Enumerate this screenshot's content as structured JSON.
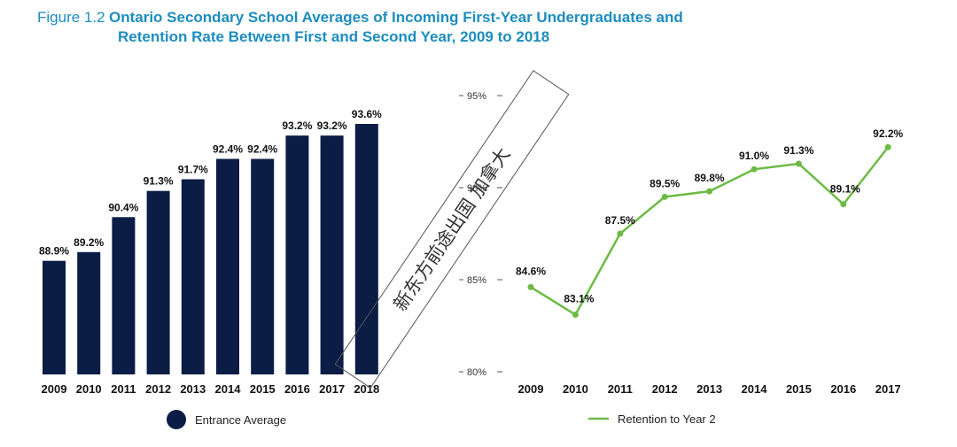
{
  "title": {
    "prefix": "Figure 1.2",
    "line1": "Ontario Secondary School Averages of Incoming First-Year Undergraduates and",
    "line2": "Retention Rate Between First and Second Year, 2009 to 2018"
  },
  "watermark": "新东方前途出国 加拿大",
  "colors": {
    "bar": "#0b1c45",
    "line": "#6dbb45",
    "title": "#1c8dbf"
  },
  "chart_data": [
    {
      "type": "bar",
      "categories": [
        "2009",
        "2010",
        "2011",
        "2012",
        "2013",
        "2014",
        "2015",
        "2016",
        "2017",
        "2018"
      ],
      "series": [
        {
          "name": "Entrance Average",
          "values": [
            88.9,
            89.2,
            90.4,
            91.3,
            91.7,
            92.4,
            92.4,
            93.2,
            93.2,
            93.6
          ],
          "labels": [
            "88.9%",
            "89.2%",
            "90.4%",
            "91.3%",
            "91.7%",
            "92.4%",
            "92.4%",
            "93.2%",
            "93.2%",
            "93.6%"
          ]
        }
      ],
      "legend": "bottom-center",
      "grid": false
    },
    {
      "type": "line",
      "categories": [
        "2009",
        "2010",
        "2011",
        "2012",
        "2013",
        "2014",
        "2015",
        "2016",
        "2017"
      ],
      "series": [
        {
          "name": "Retention to Year 2",
          "values": [
            84.6,
            83.1,
            87.5,
            89.5,
            89.8,
            91.0,
            91.3,
            89.1,
            92.2
          ],
          "labels": [
            "84.6%",
            "83.1%",
            "87.5%",
            "89.5%",
            "89.8%",
            "91.0%",
            "91.3%",
            "89.1%",
            "92.2%"
          ]
        }
      ],
      "ylim": [
        80,
        95
      ],
      "yticks": [
        80,
        85,
        90,
        95
      ],
      "ytick_labels": [
        "80%",
        "85%",
        "90%",
        "95%"
      ],
      "legend": "bottom-center",
      "grid": false
    }
  ]
}
